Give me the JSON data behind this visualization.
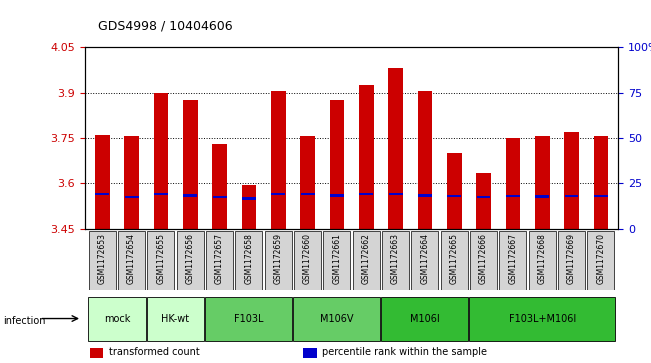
{
  "title": "GDS4998 / 10404606",
  "samples": [
    "GSM1172653",
    "GSM1172654",
    "GSM1172655",
    "GSM1172656",
    "GSM1172657",
    "GSM1172658",
    "GSM1172659",
    "GSM1172660",
    "GSM1172661",
    "GSM1172662",
    "GSM1172663",
    "GSM1172664",
    "GSM1172665",
    "GSM1172666",
    "GSM1172667",
    "GSM1172668",
    "GSM1172669",
    "GSM1172670"
  ],
  "bar_values": [
    3.76,
    3.755,
    3.9,
    3.875,
    3.73,
    3.595,
    3.905,
    3.755,
    3.875,
    3.925,
    3.98,
    3.905,
    3.7,
    3.635,
    3.75,
    3.755,
    3.77,
    3.755
  ],
  "percentile_values": [
    3.565,
    3.555,
    3.565,
    3.56,
    3.555,
    3.55,
    3.565,
    3.565,
    3.56,
    3.565,
    3.565,
    3.56,
    3.558,
    3.555,
    3.558,
    3.557,
    3.558,
    3.558
  ],
  "ylim_left": [
    3.45,
    4.05
  ],
  "yticks_left": [
    3.45,
    3.6,
    3.75,
    3.9,
    4.05
  ],
  "yticks_right": [
    0,
    25,
    50,
    75,
    100
  ],
  "bar_color": "#cc0000",
  "percentile_color": "#0000cc",
  "bar_width": 0.5,
  "legend_items": [
    {
      "label": "transformed count",
      "color": "#cc0000"
    },
    {
      "label": "percentile rank within the sample",
      "color": "#0000cc"
    }
  ],
  "background_gray": "#d4d4d4",
  "group_defs": [
    {
      "label": "mock",
      "indices": [
        0,
        1
      ],
      "color": "#ccffcc"
    },
    {
      "label": "HK-wt",
      "indices": [
        2,
        3
      ],
      "color": "#ccffcc"
    },
    {
      "label": "F103L",
      "indices": [
        4,
        5,
        6
      ],
      "color": "#66cc66"
    },
    {
      "label": "M106V",
      "indices": [
        7,
        8,
        9
      ],
      "color": "#66cc66"
    },
    {
      "label": "M106I",
      "indices": [
        10,
        11,
        12
      ],
      "color": "#33bb33"
    },
    {
      "label": "F103L+M106I",
      "indices": [
        13,
        14,
        15,
        16,
        17
      ],
      "color": "#33bb33"
    }
  ]
}
